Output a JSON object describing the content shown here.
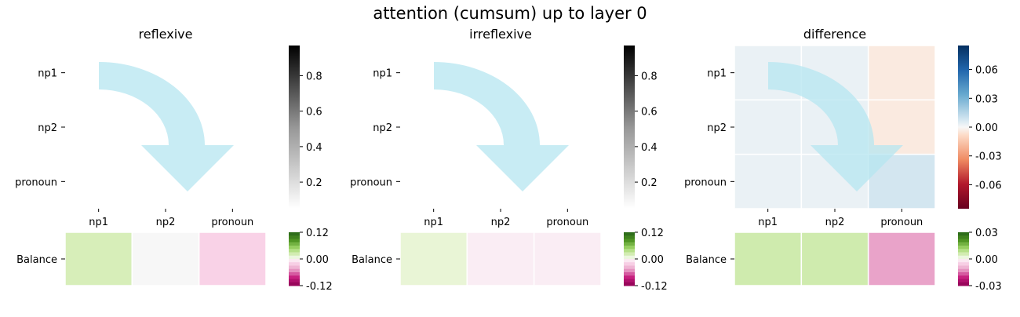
{
  "figure_title": "attention (cumsum) up to layer 0",
  "colors": {
    "arrow": "#b6e6f0",
    "grid_line": "#ffffff",
    "text": "#000000"
  },
  "chart_data": [
    {
      "type": "heatmap",
      "title": "reflexive",
      "row_labels": [
        "np1",
        "np2",
        "pronoun"
      ],
      "col_labels": [
        "np1",
        "np2",
        "pronoun"
      ],
      "values": [
        [
          0.03,
          0.0,
          0.0
        ],
        [
          0.03,
          0.03,
          0.0
        ],
        [
          0.01,
          0.02,
          0.03
        ]
      ],
      "colormap": "Greys",
      "colorbar": {
        "range": [
          0.05,
          0.97
        ],
        "ticks": [
          "0.8",
          "0.6",
          "0.4",
          "0.2"
        ]
      },
      "balance": {
        "row_label": "Balance",
        "values": [
          0.02,
          0.0,
          -0.02
        ],
        "colormap": "PiYG",
        "colorbar": {
          "range": [
            -0.12,
            0.12
          ],
          "ticks": [
            "0.12",
            "0.00",
            "-0.12"
          ]
        }
      }
    },
    {
      "type": "heatmap",
      "title": "irreflexive",
      "row_labels": [
        "np1",
        "np2",
        "pronoun"
      ],
      "col_labels": [
        "np1",
        "np2",
        "pronoun"
      ],
      "values": [
        [
          0.03,
          0.0,
          0.0
        ],
        [
          0.03,
          0.03,
          0.0
        ],
        [
          0.01,
          0.02,
          0.03
        ]
      ],
      "colormap": "Greys",
      "colorbar": {
        "range": [
          0.05,
          0.97
        ],
        "ticks": [
          "0.8",
          "0.6",
          "0.4",
          "0.2"
        ]
      },
      "balance": {
        "row_label": "Balance",
        "values": [
          0.01,
          -0.005,
          -0.005
        ],
        "colormap": "PiYG",
        "colorbar": {
          "range": [
            -0.12,
            0.12
          ],
          "ticks": [
            "0.12",
            "0.00",
            "-0.12"
          ]
        }
      }
    },
    {
      "type": "heatmap",
      "title": "difference",
      "row_labels": [
        "np1",
        "np2",
        "pronoun"
      ],
      "col_labels": [
        "np1",
        "np2",
        "pronoun"
      ],
      "values": [
        [
          0.003,
          0.003,
          -0.004
        ],
        [
          0.003,
          0.003,
          -0.004
        ],
        [
          0.003,
          0.003,
          0.008
        ]
      ],
      "colormap": "RdBu",
      "colorbar": {
        "range": [
          -0.085,
          0.085
        ],
        "ticks": [
          "0.06",
          "0.03",
          "0.00",
          "-0.03",
          "-0.06"
        ]
      },
      "balance": {
        "row_label": "Balance",
        "values": [
          0.006,
          0.006,
          -0.012
        ],
        "colormap": "PiYG",
        "colorbar": {
          "range": [
            -0.03,
            0.03
          ],
          "ticks": [
            "0.03",
            "0.00",
            "-0.03"
          ]
        }
      }
    }
  ]
}
